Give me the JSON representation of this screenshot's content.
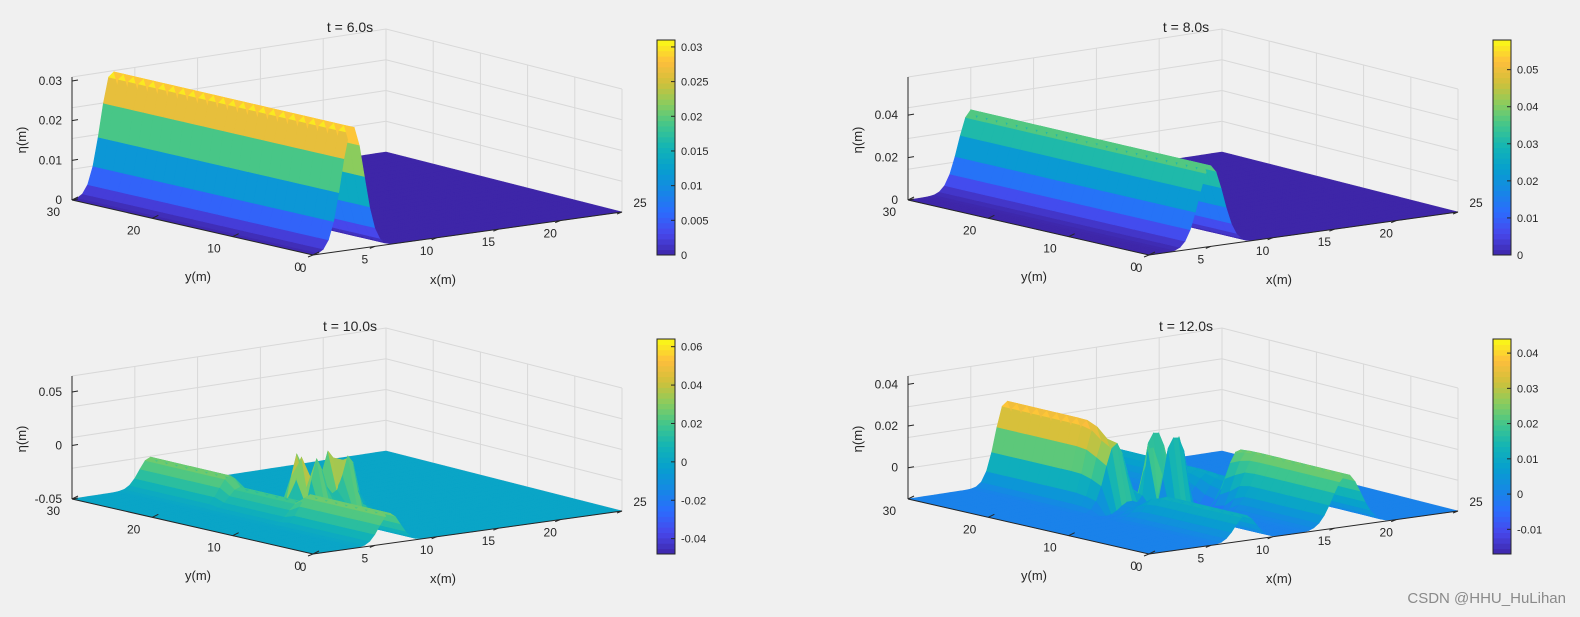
{
  "watermark": "CSDN @HHU_HuLihan",
  "chart_data": [
    {
      "type": "surface",
      "title": "t = 6.0s",
      "xlabel": "x(m)",
      "ylabel": "y(m)",
      "zlabel": "η(m)",
      "xlim": [
        0,
        25
      ],
      "ylim": [
        0,
        30
      ],
      "x_ticks": [
        "0",
        "5",
        "10",
        "15",
        "20",
        "25"
      ],
      "y_ticks": [
        "30",
        "20",
        "10",
        "0"
      ],
      "z_ticks": [
        "0",
        "0.01",
        "0.02",
        "0.03"
      ],
      "zlim": [
        0,
        0.031
      ],
      "colorbar_ticks": [
        "0",
        "0.005",
        "0.01",
        "0.015",
        "0.02",
        "0.025",
        "0.03"
      ],
      "clim": [
        0,
        0.031
      ],
      "wave_front_x_m": 6.0,
      "wave_peak_eta_m": 0.031,
      "colormap": "parula"
    },
    {
      "type": "surface",
      "title": "t = 8.0s",
      "xlabel": "x(m)",
      "ylabel": "y(m)",
      "zlabel": "η(m)",
      "xlim": [
        0,
        25
      ],
      "ylim": [
        0,
        30
      ],
      "x_ticks": [
        "0",
        "5",
        "10",
        "15",
        "20",
        "25"
      ],
      "y_ticks": [
        "30",
        "20",
        "10",
        "0"
      ],
      "z_ticks": [
        "0",
        "0.02",
        "0.04"
      ],
      "zlim": [
        0,
        0.058
      ],
      "colorbar_ticks": [
        "0",
        "0.01",
        "0.02",
        "0.03",
        "0.04",
        "0.05"
      ],
      "clim": [
        0,
        0.058
      ],
      "wave_front_x_m": 8.5,
      "wave_peak_eta_m": 0.057,
      "colormap": "parula"
    },
    {
      "type": "surface",
      "title": "t = 10.0s",
      "xlabel": "x(m)",
      "ylabel": "y(m)",
      "zlabel": "η(m)",
      "xlim": [
        0,
        25
      ],
      "ylim": [
        0,
        30
      ],
      "x_ticks": [
        "0",
        "5",
        "10",
        "15",
        "20",
        "25"
      ],
      "y_ticks": [
        "30",
        "20",
        "10",
        "0"
      ],
      "z_ticks": [
        "-0.05",
        "0",
        "0.05"
      ],
      "zlim": [
        -0.05,
        0.065
      ],
      "colorbar_ticks": [
        "-0.04",
        "-0.02",
        "0",
        "0.02",
        "0.04",
        "0.06"
      ],
      "clim": [
        -0.048,
        0.064
      ],
      "wave_front_x_m": 11.0,
      "wave_peak_eta_m": 0.064,
      "colormap": "parula"
    },
    {
      "type": "surface",
      "title": "t = 12.0s",
      "xlabel": "x(m)",
      "ylabel": "y(m)",
      "zlabel": "η(m)",
      "xlim": [
        0,
        25
      ],
      "ylim": [
        0,
        30
      ],
      "x_ticks": [
        "0",
        "5",
        "10",
        "15",
        "20",
        "25"
      ],
      "y_ticks": [
        "30",
        "20",
        "10",
        "0"
      ],
      "z_ticks": [
        "0",
        "0.02",
        "0.04"
      ],
      "zlim": [
        -0.015,
        0.044
      ],
      "colorbar_ticks": [
        "-0.01",
        "0",
        "0.01",
        "0.02",
        "0.03",
        "0.04"
      ],
      "clim": [
        -0.017,
        0.044
      ],
      "wave_front_x_m": 13.0,
      "wave_peak_eta_m": 0.043,
      "colormap": "parula"
    }
  ]
}
